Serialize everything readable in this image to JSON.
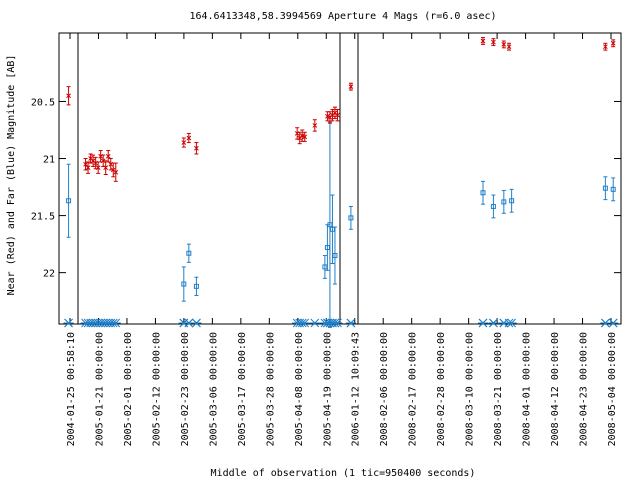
{
  "chart_data": {
    "type": "scatter",
    "title": "164.6413348,58.3994569   Aperture 4 Mags (r=6.0 asec)",
    "xlabel": "Middle of observation (1 tic=950400 seconds)",
    "ylabel": "Near (Red) and Far (Blue) Magnitude [AB]",
    "ylim": [
      22.45,
      19.9
    ],
    "y_ticks": [
      20.5,
      21,
      21.5,
      22
    ],
    "y_tick_labels": [
      "20.5",
      "21",
      "21.5",
      "22"
    ],
    "x_tick_labels": [
      "2004-01-25 00:58:10",
      "2005-01-21 00:00:00",
      "2005-02-01 00:00:00",
      "2005-02-12 00:00:00",
      "2005-02-23 00:00:00",
      "2005-03-06 00:00:00",
      "2005-03-17 00:00:00",
      "2005-03-28 00:00:00",
      "2005-04-08 00:00:00",
      "2005-04-19 00:00:00",
      "2006-01-12 10:09:43",
      "2008-02-06 00:00:00",
      "2008-02-17 00:00:00",
      "2008-02-28 00:00:00",
      "2008-03-10 00:00:00",
      "2008-03-21 00:00:00",
      "2008-04-01 00:00:00",
      "2008-04-12 00:00:00",
      "2008-04-23 00:00:00",
      "2008-05-04 00:00:00"
    ],
    "grid": false,
    "legend": "none",
    "colors": {
      "near": "#cc0000",
      "far": "#1f7fc8",
      "frame": "#000000"
    },
    "series": [
      {
        "points": [
          [
            "2004-01-25 00:58:10",
            20.45,
            0.08
          ],
          [
            "2005-01-16 00:00:00",
            21.05,
            0.05
          ],
          [
            "2005-01-17 00:00:00",
            21.08,
            0.05
          ],
          [
            "2005-01-18 00:00:00",
            21.0,
            0.04
          ],
          [
            "2005-01-19 00:00:00",
            21.02,
            0.05
          ],
          [
            "2005-01-20 00:00:00",
            21.04,
            0.05
          ],
          [
            "2005-01-21 00:00:00",
            21.08,
            0.05
          ],
          [
            "2005-01-22 00:00:00",
            20.98,
            0.05
          ],
          [
            "2005-01-23 00:00:00",
            21.02,
            0.05
          ],
          [
            "2005-01-24 00:00:00",
            21.08,
            0.06
          ],
          [
            "2005-01-25 00:00:00",
            20.98,
            0.05
          ],
          [
            "2005-01-26 00:00:00",
            21.05,
            0.05
          ],
          [
            "2005-01-27 00:00:00",
            21.1,
            0.06
          ],
          [
            "2005-01-28 00:00:00",
            21.12,
            0.08
          ],
          [
            "2005-02-24 00:00:00",
            20.86,
            0.04
          ],
          [
            "2005-02-26 00:00:00",
            20.82,
            0.04
          ],
          [
            "2005-03-01 00:00:00",
            20.91,
            0.05
          ],
          [
            "2005-04-10 00:00:00",
            20.78,
            0.05
          ],
          [
            "2005-04-11 00:00:00",
            20.82,
            0.05
          ],
          [
            "2005-04-12 00:00:00",
            20.8,
            0.05
          ],
          [
            "2005-04-13 00:00:00",
            20.81,
            0.04
          ],
          [
            "2005-04-17 00:00:00",
            20.71,
            0.05
          ],
          [
            "2005-04-22 00:00:00",
            20.63,
            0.04
          ],
          [
            "2005-04-23 00:00:00",
            20.64,
            0.05
          ],
          [
            "2005-04-24 00:00:00",
            20.62,
            0.05
          ],
          [
            "2005-04-25 00:00:00",
            20.6,
            0.05
          ],
          [
            "2005-04-26 00:00:00",
            20.62,
            0.05
          ],
          [
            "2006-01-12 10:09:43",
            20.37,
            0.03
          ],
          [
            "2008-03-21 00:00:00",
            19.97,
            0.03
          ],
          [
            "2008-03-25 00:00:00",
            19.98,
            0.03
          ],
          [
            "2008-03-29 00:00:00",
            20.0,
            0.03
          ],
          [
            "2008-03-31 00:00:00",
            20.02,
            0.03
          ],
          [
            "2008-05-07 00:00:00",
            20.02,
            0.03
          ],
          [
            "2008-05-10 00:00:00",
            19.99,
            0.03
          ]
        ]
      },
      {
        "points": [
          [
            "2004-01-25 00:58:10",
            21.37,
            0.32
          ],
          [
            "2005-02-24 00:00:00",
            22.1,
            0.15
          ],
          [
            "2005-02-26 00:00:00",
            21.83,
            0.08
          ],
          [
            "2005-03-01 00:00:00",
            22.12,
            0.08
          ],
          [
            "2005-04-21 00:00:00",
            21.95,
            0.1
          ],
          [
            "2005-04-22 00:00:00",
            21.78,
            0.2
          ],
          [
            "2005-04-23 00:00:00",
            21.58,
            0.9
          ],
          [
            "2005-04-24 00:00:00",
            21.62,
            0.3
          ],
          [
            "2005-04-25 00:00:00",
            21.85,
            0.25
          ],
          [
            "2006-01-12 10:09:43",
            21.52,
            0.1
          ],
          [
            "2008-03-21 00:00:00",
            21.3,
            0.1
          ],
          [
            "2008-03-25 00:00:00",
            21.42,
            0.1
          ],
          [
            "2008-03-29 00:00:00",
            21.38,
            0.1
          ],
          [
            "2008-04-01 00:00:00",
            21.37,
            0.1
          ],
          [
            "2008-05-07 00:00:00",
            21.26,
            0.1
          ],
          [
            "2008-05-10 00:00:00",
            21.27,
            0.1
          ]
        ]
      }
    ]
  }
}
